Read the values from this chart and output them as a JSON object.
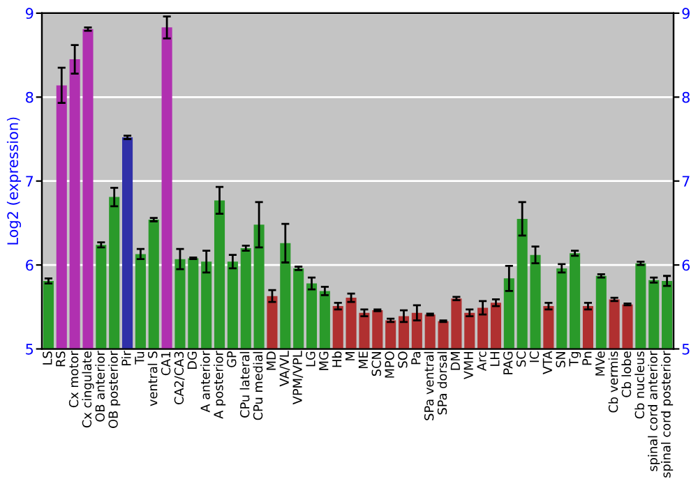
{
  "chart_data": {
    "type": "bar",
    "ylabel": "Log2 (expression)",
    "categories": [
      "LS",
      "RS",
      "Cx motor",
      "Cx cingulate",
      "OB anterior",
      "OB posterior",
      "Pir",
      "Tu",
      "ventral S",
      "CA1",
      "CA2/CA3",
      "DG",
      "A anterior",
      "A posterior",
      "GP",
      "CPu lateral",
      "CPu medial",
      "MD",
      "VA/VL",
      "VPM/VPL",
      "LG",
      "MG",
      "Hb",
      "M",
      "ME",
      "SCN",
      "MPO",
      "SO",
      "Pa",
      "SPa ventral",
      "SPa dorsal",
      "DM",
      "VMH",
      "Arc",
      "LH",
      "PAG",
      "SC",
      "IC",
      "VTA",
      "SN",
      "Tg",
      "Pn",
      "MVe",
      "Cb vermis",
      "Cb lobe",
      "Cb nucleus",
      "spinal cord anterior",
      "spinal cord posterior"
    ],
    "values": [
      5.81,
      8.14,
      8.45,
      8.81,
      6.24,
      6.81,
      7.52,
      6.13,
      6.54,
      8.83,
      6.07,
      6.08,
      6.04,
      6.77,
      6.04,
      6.2,
      6.48,
      5.63,
      6.26,
      5.96,
      5.78,
      5.69,
      5.51,
      5.61,
      5.43,
      5.46,
      5.34,
      5.39,
      5.43,
      5.41,
      5.33,
      5.6,
      5.43,
      5.49,
      5.55,
      5.84,
      6.55,
      6.12,
      5.51,
      5.96,
      6.14,
      5.51,
      5.87,
      5.59,
      5.53,
      6.02,
      5.82,
      5.81
    ],
    "errors": [
      0.03,
      0.21,
      0.17,
      0.02,
      0.03,
      0.11,
      0.02,
      0.06,
      0.02,
      0.13,
      0.12,
      0.01,
      0.13,
      0.16,
      0.08,
      0.03,
      0.27,
      0.07,
      0.23,
      0.02,
      0.07,
      0.05,
      0.04,
      0.05,
      0.04,
      0.01,
      0.02,
      0.07,
      0.09,
      0.01,
      0.01,
      0.02,
      0.04,
      0.08,
      0.04,
      0.15,
      0.2,
      0.1,
      0.04,
      0.05,
      0.03,
      0.04,
      0.02,
      0.02,
      0.01,
      0.02,
      0.03,
      0.06
    ],
    "colors": [
      "#2a9a2a",
      "#b030b0",
      "#b030b0",
      "#b030b0",
      "#2a9a2a",
      "#2a9a2a",
      "#3030a8",
      "#2a9a2a",
      "#2a9a2a",
      "#b030b0",
      "#2a9a2a",
      "#2a9a2a",
      "#2a9a2a",
      "#2a9a2a",
      "#2a9a2a",
      "#2a9a2a",
      "#2a9a2a",
      "#b03030",
      "#2a9a2a",
      "#2a9a2a",
      "#2a9a2a",
      "#2a9a2a",
      "#b03030",
      "#b03030",
      "#b03030",
      "#b03030",
      "#b03030",
      "#b03030",
      "#b03030",
      "#b03030",
      "#b03030",
      "#b03030",
      "#b03030",
      "#b03030",
      "#b03030",
      "#2a9a2a",
      "#2a9a2a",
      "#2a9a2a",
      "#b03030",
      "#2a9a2a",
      "#2a9a2a",
      "#b03030",
      "#2a9a2a",
      "#b03030",
      "#b03030",
      "#2a9a2a",
      "#2a9a2a",
      "#2a9a2a"
    ],
    "ylim": [
      5,
      9
    ],
    "yticks": [
      5,
      6,
      7,
      8,
      9
    ],
    "y2lim": [
      5,
      9
    ],
    "y2ticks": [
      5,
      6,
      7,
      8,
      9
    ],
    "grid": "y"
  }
}
